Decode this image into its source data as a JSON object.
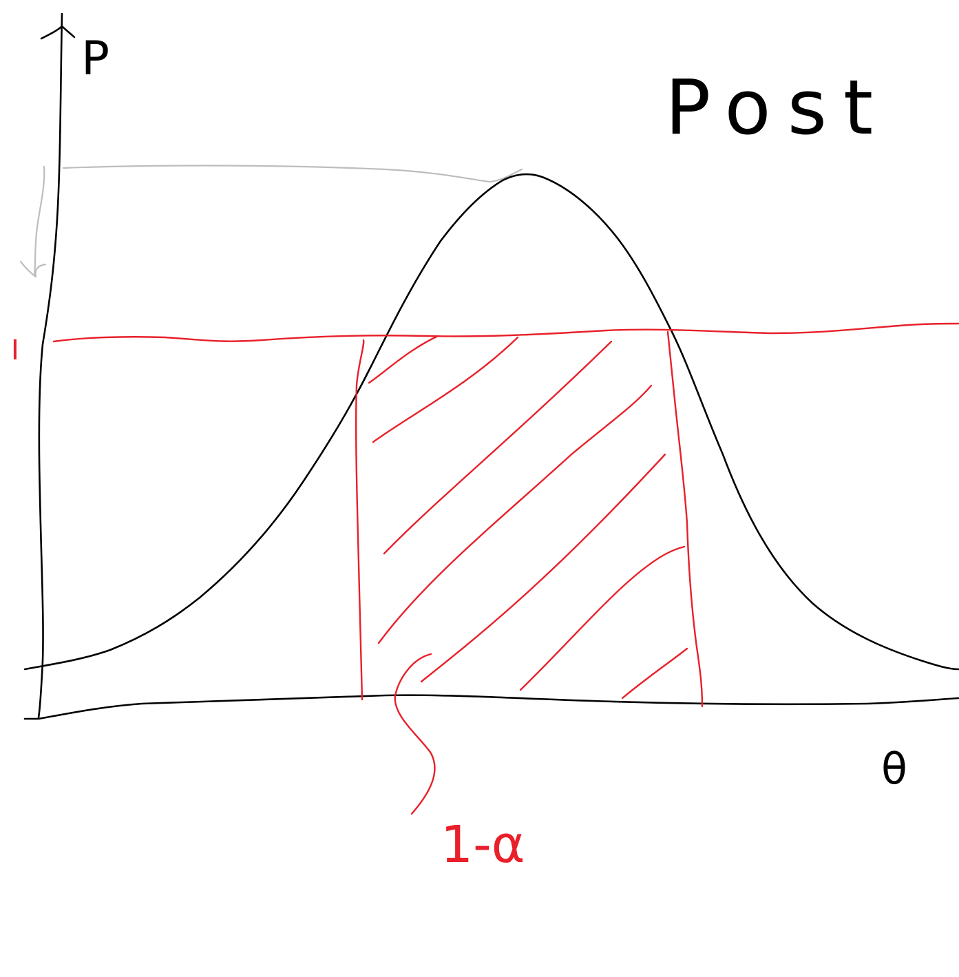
{
  "diagram": {
    "title": "Post",
    "y_axis_label": "P",
    "x_axis_label": "θ",
    "threshold_label": "I",
    "area_label": "1-α",
    "colors": {
      "curve": "#000000",
      "axes": "#000000",
      "highlight": "#e8202a",
      "guide": "#bdbdbd",
      "background": "#ffffff"
    }
  }
}
